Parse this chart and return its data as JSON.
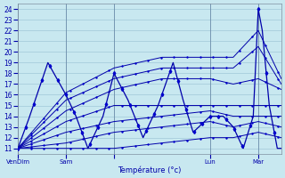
{
  "title": "",
  "xlabel": "Température (°c)",
  "ylabel": "",
  "bg_color": "#c8e8f0",
  "grid_color": "#a0c8d8",
  "line_color": "#0000aa",
  "marker_color": "#0000cc",
  "ylim": [
    10.5,
    24.5
  ],
  "yticks": [
    11,
    12,
    13,
    14,
    15,
    16,
    17,
    18,
    19,
    20,
    21,
    22,
    23,
    24
  ],
  "xtick_positions": [
    0,
    48,
    96,
    192,
    240
  ],
  "xtick_labels": [
    "VenDim",
    "Sam",
    "",
    "Lun",
    "Mar"
  ],
  "num_points": 264,
  "day_lines": [
    0,
    48,
    96,
    192,
    240
  ],
  "forecast_lines": [
    {
      "pts_x": [
        0,
        48,
        96,
        144,
        192,
        215,
        240,
        263
      ],
      "pts_y": [
        11,
        16.2,
        18.5,
        19.5,
        19.5,
        19.5,
        22.0,
        17.5
      ]
    },
    {
      "pts_x": [
        0,
        48,
        96,
        144,
        192,
        215,
        240,
        263
      ],
      "pts_y": [
        11,
        15.5,
        17.5,
        18.5,
        18.5,
        18.5,
        20.5,
        17.0
      ]
    },
    {
      "pts_x": [
        0,
        48,
        96,
        144,
        192,
        215,
        240,
        263
      ],
      "pts_y": [
        11,
        14.5,
        16.5,
        17.5,
        17.5,
        17.0,
        17.5,
        16.5
      ]
    },
    {
      "pts_x": [
        0,
        48,
        96,
        144,
        192,
        215,
        240,
        263
      ],
      "pts_y": [
        11,
        13.5,
        15.0,
        15.0,
        15.0,
        15.0,
        15.0,
        15.0
      ]
    },
    {
      "pts_x": [
        0,
        48,
        96,
        144,
        192,
        215,
        240,
        263
      ],
      "pts_y": [
        11,
        12.5,
        13.5,
        14.0,
        14.5,
        14.0,
        14.0,
        14.0
      ]
    },
    {
      "pts_x": [
        0,
        48,
        96,
        144,
        192,
        215,
        240,
        263
      ],
      "pts_y": [
        11,
        11.5,
        12.5,
        13.0,
        13.5,
        13.0,
        13.5,
        13.0
      ]
    },
    {
      "pts_x": [
        0,
        48,
        96,
        144,
        192,
        215,
        240,
        263
      ],
      "pts_y": [
        11,
        11.0,
        11.0,
        11.5,
        12.0,
        12.0,
        12.5,
        12.0
      ]
    }
  ],
  "actual_x": [
    0,
    10,
    30,
    48,
    58,
    70,
    85,
    96,
    110,
    125,
    140,
    155,
    165,
    175,
    192,
    205,
    215,
    225,
    235,
    240,
    244,
    247,
    251,
    255,
    259,
    263
  ],
  "actual_y": [
    11,
    13.5,
    19,
    16,
    14,
    11,
    14,
    18,
    15.5,
    12,
    15,
    19,
    15.5,
    12.5,
    14,
    14,
    13,
    11,
    14,
    24,
    22,
    19,
    15,
    13,
    11,
    11
  ]
}
